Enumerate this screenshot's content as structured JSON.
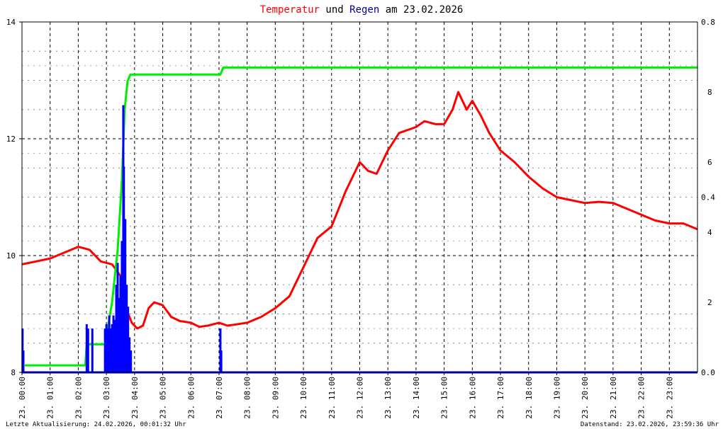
{
  "title": {
    "part1": "Temperatur",
    "part2": " und ",
    "part3": "Regen",
    "part4": " am 23.02.2026",
    "color1": "#ff0000",
    "color3": "#000099"
  },
  "footer": {
    "left": "Letzte Aktualisierung: 24.02.2026, 00:01:32 Uhr",
    "right": "Datenstand: 23.02.2026, 23:59:36 Uhr"
  },
  "chart_data": {
    "type": "line",
    "grid": true,
    "x_tick_labels": [
      "23. 00:00",
      "23. 01:00",
      "23. 02:00",
      "23. 03:00",
      "23. 04:00",
      "23. 05:00",
      "23. 06:00",
      "23. 07:00",
      "23. 08:00",
      "23. 09:00",
      "23. 10:00",
      "23. 11:00",
      "23. 12:00",
      "23. 13:00",
      "23. 14:00",
      "23. 15:00",
      "23. 16:00",
      "23. 17:00",
      "23. 18:00",
      "23. 19:00",
      "23. 20:00",
      "23. 21:00",
      "23. 22:00",
      "23. 23:00"
    ],
    "xlim_hours": [
      0,
      24
    ],
    "y_left": {
      "ylim": [
        8,
        14
      ],
      "tick_labels": [
        "8",
        "10",
        "12",
        "14"
      ],
      "color": "#000000"
    },
    "y_right_rain": {
      "ylim": [
        0,
        0.8
      ],
      "tick_labels": [
        "0.0",
        "0.4",
        "0.8"
      ],
      "color": "#000000"
    },
    "y_right_total": {
      "ylim": [
        0,
        10
      ],
      "tick_labels": [
        "2",
        "4",
        "6",
        "8"
      ],
      "color": "#00cc00"
    },
    "series": [
      {
        "color": "#ff0000",
        "axis": "left",
        "x": [
          0,
          0.5,
          1.0,
          1.5,
          2.0,
          2.4,
          2.8,
          3.2,
          3.5,
          3.7,
          3.9,
          4.1,
          4.3,
          4.5,
          4.7,
          5.0,
          5.3,
          5.6,
          6.0,
          6.3,
          6.6,
          7.0,
          7.3,
          7.6,
          8.0,
          8.5,
          9.0,
          9.5,
          10.0,
          10.5,
          11.0,
          11.5,
          12.0,
          12.3,
          12.6,
          13.0,
          13.4,
          14.0,
          14.3,
          14.7,
          15.0,
          15.3,
          15.5,
          15.8,
          16.0,
          16.3,
          16.6,
          17.0,
          17.5,
          18.0,
          18.5,
          19.0,
          19.5,
          20.0,
          20.5,
          21.0,
          21.5,
          22.0,
          22.5,
          23.0,
          23.5,
          24.0
        ],
        "values": [
          9.85,
          9.9,
          9.95,
          10.05,
          10.15,
          10.1,
          9.9,
          9.85,
          9.65,
          9.1,
          8.85,
          8.75,
          8.8,
          9.1,
          9.2,
          9.15,
          8.95,
          8.88,
          8.85,
          8.78,
          8.8,
          8.85,
          8.8,
          8.82,
          8.85,
          8.95,
          9.1,
          9.3,
          9.8,
          10.3,
          10.5,
          11.1,
          11.6,
          11.45,
          11.4,
          11.8,
          12.1,
          12.2,
          12.3,
          12.25,
          12.25,
          12.5,
          12.8,
          12.5,
          12.65,
          12.4,
          12.1,
          11.8,
          11.6,
          11.35,
          11.15,
          11.0,
          10.95,
          10.9,
          10.92,
          10.9,
          10.8,
          10.7,
          10.6,
          10.55,
          10.55,
          10.45
        ]
      },
      {
        "color": "#00ee00",
        "axis": "right_total",
        "x": [
          0.1,
          2.25,
          2.3,
          2.95,
          3.2,
          3.4,
          3.55,
          3.65,
          3.75,
          3.85,
          7.05,
          7.15,
          24.0
        ],
        "values": [
          0.2,
          0.2,
          0.8,
          0.8,
          2.0,
          3.5,
          5.5,
          7.5,
          8.3,
          8.5,
          8.5,
          8.7,
          8.7
        ]
      },
      {
        "color": "#0000ff",
        "axis": "right_rain",
        "type": "bar",
        "x": [
          0.02,
          0.05,
          2.3,
          2.35,
          2.5,
          2.95,
          3.0,
          3.05,
          3.1,
          3.15,
          3.2,
          3.25,
          3.3,
          3.35,
          3.4,
          3.45,
          3.5,
          3.55,
          3.6,
          3.62,
          3.67,
          3.72,
          3.77,
          3.82,
          3.87,
          7.05,
          7.08
        ],
        "values": [
          0.1,
          0.05,
          0.11,
          0.1,
          0.1,
          0.1,
          0.11,
          0.1,
          0.13,
          0.1,
          0.11,
          0.13,
          0.12,
          0.2,
          0.25,
          0.17,
          0.22,
          0.3,
          0.61,
          0.47,
          0.35,
          0.2,
          0.15,
          0.08,
          0.05,
          0.1,
          0.05
        ]
      }
    ]
  }
}
